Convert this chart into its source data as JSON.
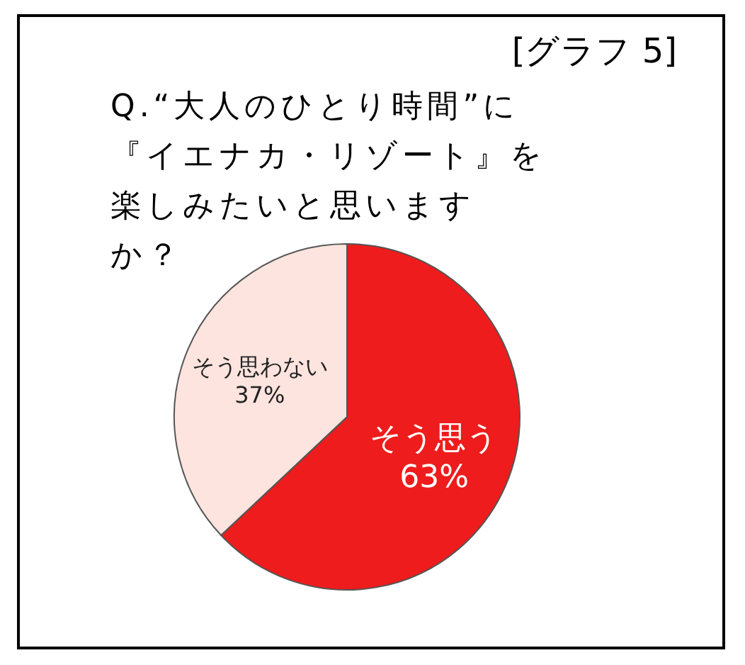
{
  "chart_data": {
    "type": "pie",
    "title": "Q.“大人のひとり時間”に『イエナカ・リゾート』を楽しみたいと思いますか？",
    "annotations": [
      "[グラフ 5]"
    ],
    "categories": [
      "そう思う",
      "そう思わない"
    ],
    "values": [
      63,
      37
    ],
    "colors": [
      "#ee1c1c",
      "#fde4de"
    ],
    "value_labels": [
      "63%",
      "37%"
    ]
  }
}
